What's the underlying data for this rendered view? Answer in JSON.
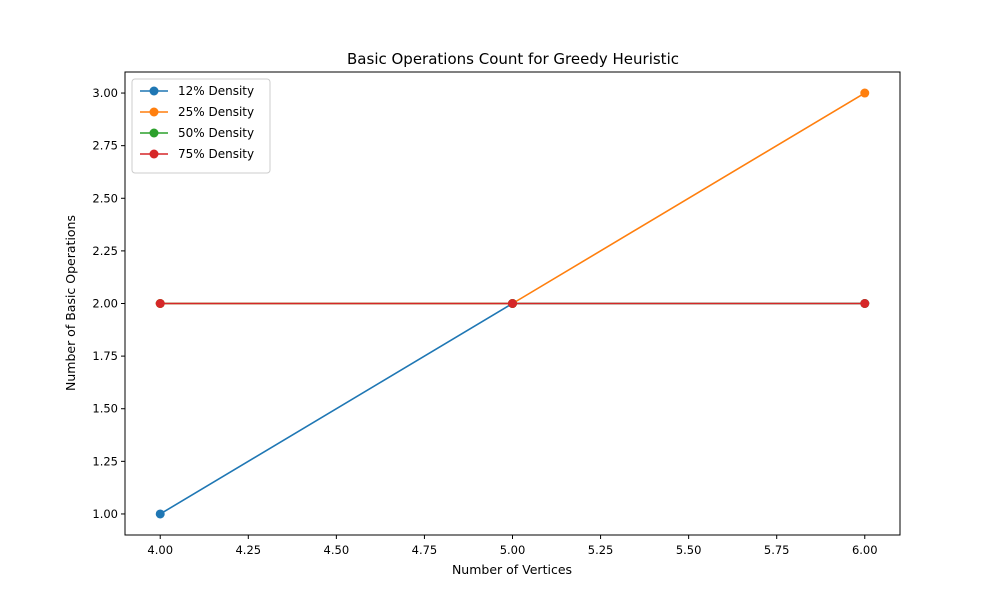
{
  "chart_data": {
    "type": "line",
    "title": "Basic Operations Count for Greedy Heuristic",
    "xlabel": "Number of Vertices",
    "ylabel": "Number of Basic Operations",
    "xlim": [
      3.9,
      6.1
    ],
    "ylim": [
      0.9,
      3.1
    ],
    "x_ticks": [
      4.0,
      4.25,
      4.5,
      4.75,
      5.0,
      5.25,
      5.5,
      5.75,
      6.0
    ],
    "x_tick_labels": [
      "4.00",
      "4.25",
      "4.50",
      "4.75",
      "5.00",
      "5.25",
      "5.50",
      "5.75",
      "6.00"
    ],
    "y_ticks": [
      1.0,
      1.25,
      1.5,
      1.75,
      2.0,
      2.25,
      2.5,
      2.75,
      3.0
    ],
    "y_tick_labels": [
      "1.00",
      "1.25",
      "1.50",
      "1.75",
      "2.00",
      "2.25",
      "2.50",
      "2.75",
      "3.00"
    ],
    "grid": false,
    "legend_position": "top-left",
    "series": [
      {
        "name": "12% Density",
        "color": "#1f77b4",
        "x": [
          4,
          5,
          6
        ],
        "y": [
          1,
          2,
          2
        ]
      },
      {
        "name": "25% Density",
        "color": "#ff7f0e",
        "x": [
          4,
          5,
          6
        ],
        "y": [
          2,
          2,
          3
        ]
      },
      {
        "name": "50% Density",
        "color": "#2ca02c",
        "x": [
          4,
          5,
          6
        ],
        "y": [
          2,
          2,
          2
        ]
      },
      {
        "name": "75% Density",
        "color": "#d62728",
        "x": [
          4,
          5,
          6
        ],
        "y": [
          2,
          2,
          2
        ]
      }
    ]
  }
}
